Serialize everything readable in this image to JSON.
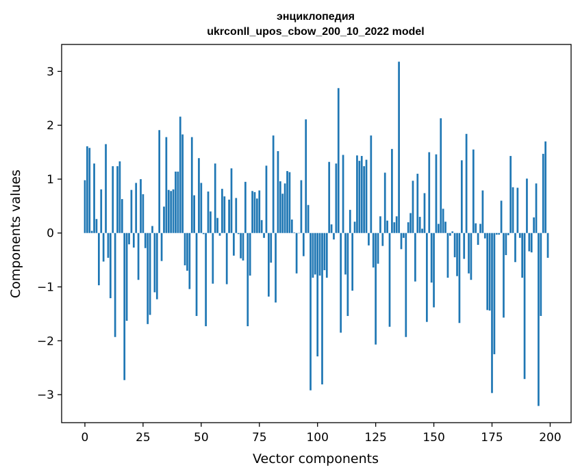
{
  "chart_data": {
    "type": "bar",
    "title": "энциклопедия",
    "subtitle": "ukrconll_upos_cbow_200_10_2022 model",
    "xlabel": "Vector components",
    "ylabel": "Components values",
    "xlim": [
      -10,
      209
    ],
    "ylim": [
      -3.52,
      3.5
    ],
    "grid": false,
    "legend": "none",
    "bar_color": "#1f77b4",
    "x_ticks": [
      {
        "value": 0,
        "label": "0"
      },
      {
        "value": 25,
        "label": "25"
      },
      {
        "value": 50,
        "label": "50"
      },
      {
        "value": 75,
        "label": "75"
      },
      {
        "value": 100,
        "label": "100"
      },
      {
        "value": 125,
        "label": "125"
      },
      {
        "value": 150,
        "label": "150"
      },
      {
        "value": 175,
        "label": "175"
      },
      {
        "value": 200,
        "label": "200"
      }
    ],
    "y_ticks": [
      {
        "value": -3,
        "label": "−3"
      },
      {
        "value": -2,
        "label": "−2"
      },
      {
        "value": -1,
        "label": "−1"
      },
      {
        "value": 0,
        "label": "0"
      },
      {
        "value": 1,
        "label": "1"
      },
      {
        "value": 2,
        "label": "2"
      },
      {
        "value": 3,
        "label": "3"
      }
    ],
    "x": [
      0,
      1,
      2,
      3,
      4,
      5,
      6,
      7,
      8,
      9,
      10,
      11,
      12,
      13,
      14,
      15,
      16,
      17,
      18,
      19,
      20,
      21,
      22,
      23,
      24,
      25,
      26,
      27,
      28,
      29,
      30,
      31,
      32,
      33,
      34,
      35,
      36,
      37,
      38,
      39,
      40,
      41,
      42,
      43,
      44,
      45,
      46,
      47,
      48,
      49,
      50,
      51,
      52,
      53,
      54,
      55,
      56,
      57,
      58,
      59,
      60,
      61,
      62,
      63,
      64,
      65,
      66,
      67,
      68,
      69,
      70,
      71,
      72,
      73,
      74,
      75,
      76,
      77,
      78,
      79,
      80,
      81,
      82,
      83,
      84,
      85,
      86,
      87,
      88,
      89,
      90,
      91,
      92,
      93,
      94,
      95,
      96,
      97,
      98,
      99,
      100,
      101,
      102,
      103,
      104,
      105,
      106,
      107,
      108,
      109,
      110,
      111,
      112,
      113,
      114,
      115,
      116,
      117,
      118,
      119,
      120,
      121,
      122,
      123,
      124,
      125,
      126,
      127,
      128,
      129,
      130,
      131,
      132,
      133,
      134,
      135,
      136,
      137,
      138,
      139,
      140,
      141,
      142,
      143,
      144,
      145,
      146,
      147,
      148,
      149,
      150,
      151,
      152,
      153,
      154,
      155,
      156,
      157,
      158,
      159,
      160,
      161,
      162,
      163,
      164,
      165,
      166,
      167,
      168,
      169,
      170,
      171,
      172,
      173,
      174,
      175,
      176,
      177,
      178,
      179,
      180,
      181,
      182,
      183,
      184,
      185,
      186,
      187,
      188,
      189,
      190,
      191,
      192,
      193,
      194,
      195,
      196,
      197,
      198,
      199
    ],
    "values": [
      0.98,
      1.61,
      1.58,
      0.04,
      1.29,
      0.26,
      -0.97,
      0.81,
      -0.53,
      1.65,
      -0.46,
      -1.21,
      1.24,
      -1.93,
      1.24,
      1.33,
      0.63,
      -2.73,
      -1.63,
      -0.21,
      0.8,
      -0.27,
      0.93,
      -0.87,
      1.0,
      0.72,
      -0.28,
      -1.69,
      -1.52,
      0.13,
      -1.1,
      -1.23,
      1.91,
      -0.52,
      0.49,
      1.78,
      0.8,
      0.78,
      0.81,
      1.14,
      1.14,
      2.16,
      1.83,
      -0.6,
      -0.7,
      -1.04,
      1.78,
      0.7,
      -1.54,
      1.39,
      0.93,
      -0.02,
      -1.73,
      0.77,
      0.4,
      -0.94,
      1.29,
      0.28,
      -0.05,
      0.82,
      0.68,
      -0.95,
      0.62,
      1.2,
      -0.42,
      0.65,
      -0.02,
      -0.47,
      -0.51,
      0.95,
      -1.73,
      -0.79,
      0.78,
      0.76,
      0.64,
      0.79,
      0.24,
      -0.09,
      1.25,
      -1.18,
      -0.55,
      1.81,
      -1.29,
      1.52,
      0.96,
      0.73,
      0.92,
      1.15,
      1.13,
      0.25,
      0.01,
      -0.75,
      0.0,
      0.98,
      -0.43,
      2.11,
      0.52,
      -2.92,
      -0.83,
      -0.77,
      -2.29,
      -0.79,
      -2.81,
      -0.69,
      -0.83,
      1.32,
      0.16,
      -0.12,
      1.29,
      2.69,
      -1.85,
      1.45,
      -0.77,
      -1.54,
      0.43,
      -1.07,
      0.21,
      1.44,
      1.34,
      1.43,
      1.24,
      1.36,
      -0.23,
      1.81,
      -0.64,
      -2.07,
      -0.57,
      0.31,
      -0.24,
      1.12,
      0.23,
      -1.74,
      1.56,
      0.2,
      0.31,
      3.18,
      -0.3,
      -0.09,
      -1.93,
      0.2,
      0.37,
      0.97,
      -0.9,
      1.1,
      0.3,
      0.08,
      0.74,
      -1.65,
      1.5,
      -0.92,
      -1.38,
      1.46,
      0.17,
      2.13,
      0.45,
      0.21,
      -0.83,
      -0.05,
      0.03,
      -0.45,
      -0.8,
      -1.67,
      1.35,
      -0.48,
      1.84,
      -0.75,
      -0.87,
      1.55,
      0.18,
      -0.22,
      0.17,
      0.79,
      -0.1,
      -1.43,
      -1.44,
      -2.97,
      -2.25,
      -0.03,
      -0.03,
      0.6,
      -1.57,
      -0.41,
      -0.04,
      1.43,
      0.85,
      -0.54,
      0.84,
      -0.09,
      -0.83,
      -2.71,
      1.01,
      -0.34,
      -0.36,
      0.29,
      0.92,
      -3.21,
      -1.54,
      1.47,
      1.7,
      -0.46
    ]
  }
}
